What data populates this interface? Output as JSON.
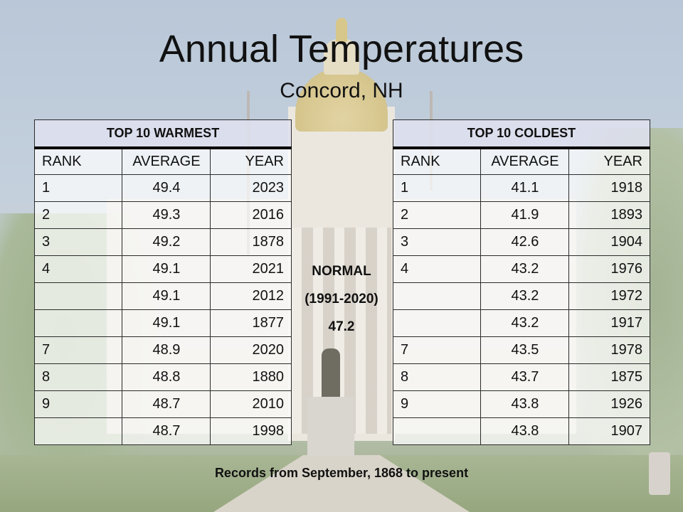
{
  "slide": {
    "title": "Annual Temperatures",
    "subtitle": "Concord, NH",
    "footer": "Records from September, 1868 to present"
  },
  "normal": {
    "label": "NORMAL",
    "period": "(1991-2020)",
    "value": "47.2"
  },
  "warmest": {
    "heading": "TOP 10 WARMEST",
    "columns": [
      "RANK",
      "AVERAGE",
      "YEAR"
    ],
    "rows": [
      [
        "1",
        "49.4",
        "2023"
      ],
      [
        "2",
        "49.3",
        "2016"
      ],
      [
        "3",
        "49.2",
        "1878"
      ],
      [
        "4",
        "49.1",
        "2021"
      ],
      [
        "",
        "49.1",
        "2012"
      ],
      [
        "",
        "49.1",
        "1877"
      ],
      [
        "7",
        "48.9",
        "2020"
      ],
      [
        "8",
        "48.8",
        "1880"
      ],
      [
        "9",
        "48.7",
        "2010"
      ],
      [
        "",
        "48.7",
        "1998"
      ]
    ]
  },
  "coldest": {
    "heading": "TOP 10 COLDEST",
    "columns": [
      "RANK",
      "AVERAGE",
      "YEAR"
    ],
    "rows": [
      [
        "1",
        "41.1",
        "1918"
      ],
      [
        "2",
        "41.9",
        "1893"
      ],
      [
        "3",
        "42.6",
        "1904"
      ],
      [
        "4",
        "43.2",
        "1976"
      ],
      [
        "",
        "43.2",
        "1972"
      ],
      [
        "",
        "43.2",
        "1917"
      ],
      [
        "7",
        "43.5",
        "1978"
      ],
      [
        "8",
        "43.7",
        "1875"
      ],
      [
        "9",
        "43.8",
        "1926"
      ],
      [
        "",
        "43.8",
        "1907"
      ]
    ]
  }
}
